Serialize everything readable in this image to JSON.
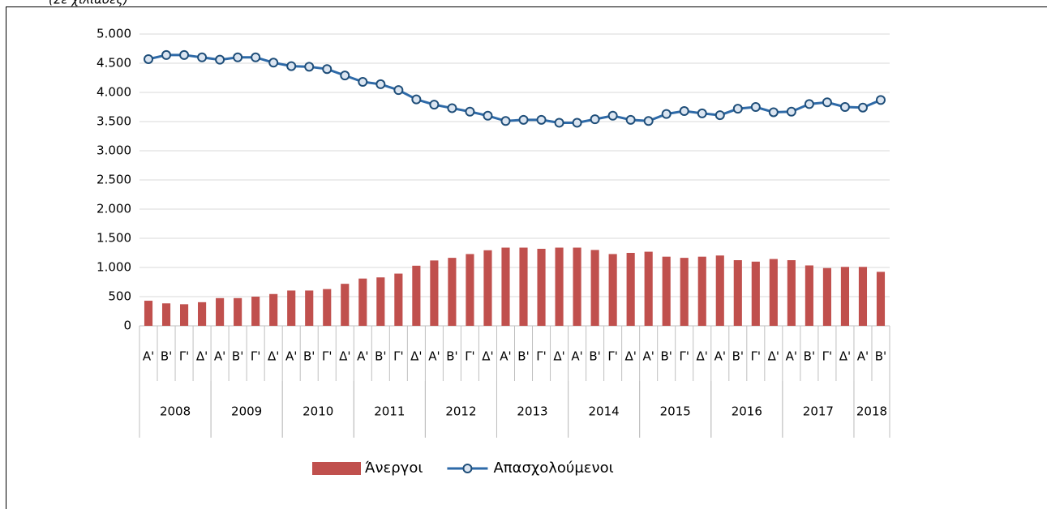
{
  "chart_data": {
    "type": "bar-line",
    "subtitle": "(Σε χιλιάδες)",
    "categories": [
      "Α'",
      "Β'",
      "Γ'",
      "Δ'",
      "Α'",
      "Β'",
      "Γ'",
      "Δ'",
      "Α'",
      "Β'",
      "Γ'",
      "Δ'",
      "Α'",
      "Β'",
      "Γ'",
      "Δ'",
      "Α'",
      "Β'",
      "Γ'",
      "Δ'",
      "Α'",
      "Β'",
      "Γ'",
      "Δ'",
      "Α'",
      "Β'",
      "Γ'",
      "Δ'",
      "Α'",
      "Β'",
      "Γ'",
      "Δ'",
      "Α'",
      "Β'",
      "Γ'",
      "Δ'",
      "Α'",
      "Β'",
      "Γ'",
      "Δ'",
      "Α'",
      "Β'"
    ],
    "years": [
      "2008",
      "2009",
      "2010",
      "2011",
      "2012",
      "2013",
      "2014",
      "2015",
      "2016",
      "2017",
      "2018"
    ],
    "year_spans": [
      4,
      4,
      4,
      4,
      4,
      4,
      4,
      4,
      4,
      4,
      2
    ],
    "series": [
      {
        "name": "Άνεργοι",
        "type": "bar",
        "color": "#c0504d",
        "values": [
          430,
          385,
          370,
          405,
          475,
          475,
          500,
          545,
          605,
          605,
          630,
          720,
          810,
          830,
          895,
          1030,
          1120,
          1165,
          1230,
          1295,
          1340,
          1340,
          1320,
          1340,
          1340,
          1300,
          1230,
          1250,
          1270,
          1185,
          1165,
          1185,
          1205,
          1125,
          1100,
          1145,
          1125,
          1035,
          990,
          1010,
          1010,
          925
        ]
      },
      {
        "name": "Απασχολούμενοι",
        "type": "line",
        "color": "#2e6aa8",
        "values": [
          4570,
          4640,
          4640,
          4600,
          4560,
          4600,
          4600,
          4510,
          4450,
          4440,
          4400,
          4290,
          4180,
          4140,
          4040,
          3880,
          3790,
          3730,
          3670,
          3600,
          3510,
          3530,
          3530,
          3480,
          3480,
          3540,
          3600,
          3530,
          3510,
          3630,
          3680,
          3640,
          3610,
          3720,
          3750,
          3660,
          3670,
          3800,
          3830,
          3750,
          3740,
          3870
        ]
      }
    ],
    "ylim": [
      0,
      5000
    ],
    "yticks": [
      0,
      500,
      {
        "value": 1000,
        "label": "1.000"
      },
      {
        "value": 1500,
        "label": "1.500"
      },
      {
        "value": 2000,
        "label": "2.000"
      },
      {
        "value": 2500,
        "label": "2.500"
      },
      {
        "value": 3000,
        "label": "3.000"
      },
      {
        "value": 3500,
        "label": "3.500"
      },
      {
        "value": 4000,
        "label": "4.000"
      },
      {
        "value": 4500,
        "label": "4.500"
      },
      {
        "value": 5000,
        "label": "5.000"
      }
    ],
    "grid": true
  }
}
